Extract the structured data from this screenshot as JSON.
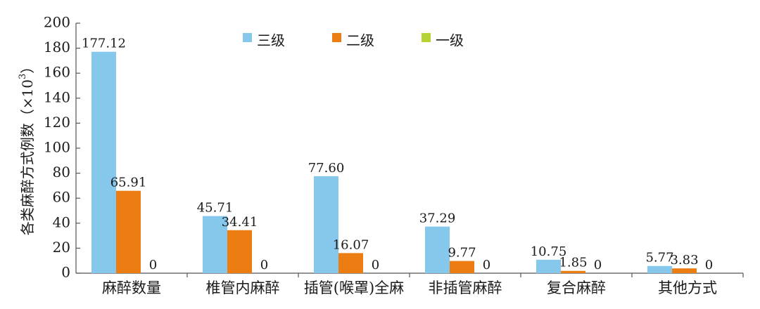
{
  "chart_data": {
    "type": "bar",
    "categories": [
      "麻醉数量",
      "椎管内麻醉",
      "插管(喉罩)全麻",
      "非插管麻醉",
      "复合麻醉",
      "其他方式"
    ],
    "series": [
      {
        "name": "三级",
        "color": "#86c7ec",
        "values": [
          177.12,
          45.71,
          77.6,
          37.29,
          10.75,
          5.77
        ],
        "labels": [
          "177.12",
          "45.71",
          "77.60",
          "37.29",
          "10.75",
          "5.77"
        ]
      },
      {
        "name": "二级",
        "color": "#ec7d12",
        "values": [
          65.91,
          34.41,
          16.07,
          9.77,
          1.85,
          3.83
        ],
        "labels": [
          "65.91",
          "34.41",
          "16.07",
          "9.77",
          "1.85",
          "3.83"
        ]
      },
      {
        "name": "一级",
        "color": "#b5d334",
        "values": [
          0,
          0,
          0,
          0,
          0,
          0
        ],
        "labels": [
          "0",
          "0",
          "0",
          "0",
          "0",
          "0"
        ]
      }
    ],
    "ylabel_main": "各类麻醉方式例数（×10",
    "ylabel_sup": "3",
    "ylabel_close": "）",
    "ylim": [
      0,
      200
    ],
    "yticks": [
      0,
      20,
      40,
      60,
      80,
      100,
      120,
      140,
      160,
      180,
      200
    ],
    "legend_position": "top-center",
    "grid": false
  }
}
